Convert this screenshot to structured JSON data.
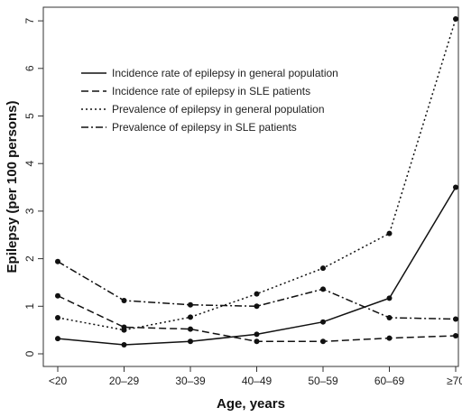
{
  "chart_data": {
    "type": "line",
    "title": "",
    "xlabel": "Age, years",
    "ylabel": "Epilepsy (per 100 persons)",
    "categories": [
      "<20",
      "20–29",
      "30–39",
      "40–49",
      "50–59",
      "60–69",
      "≥70"
    ],
    "ylim": [
      0,
      7
    ],
    "yticks": [
      0,
      1,
      2,
      3,
      4,
      5,
      6,
      7
    ],
    "grid": false,
    "legend_position": "top-left",
    "series": [
      {
        "name": "Incidence rate of epilepsy in general population",
        "line_style": "solid",
        "values": [
          0.32,
          0.19,
          0.26,
          0.41,
          0.67,
          1.17,
          3.5
        ]
      },
      {
        "name": "Incidence rate of epilepsy in SLE patients",
        "line_style": "dashed",
        "values": [
          1.22,
          0.56,
          0.52,
          0.26,
          0.26,
          0.33,
          0.38
        ]
      },
      {
        "name": "Prevalence of epilepsy in general population",
        "line_style": "dotted",
        "values": [
          0.76,
          0.5,
          0.77,
          1.26,
          1.8,
          2.53,
          7.04
        ]
      },
      {
        "name": "Prevalence of epilepsy in SLE patients",
        "line_style": "dashdot",
        "values": [
          1.94,
          1.12,
          1.03,
          1.0,
          1.36,
          0.76,
          0.73
        ]
      }
    ]
  }
}
